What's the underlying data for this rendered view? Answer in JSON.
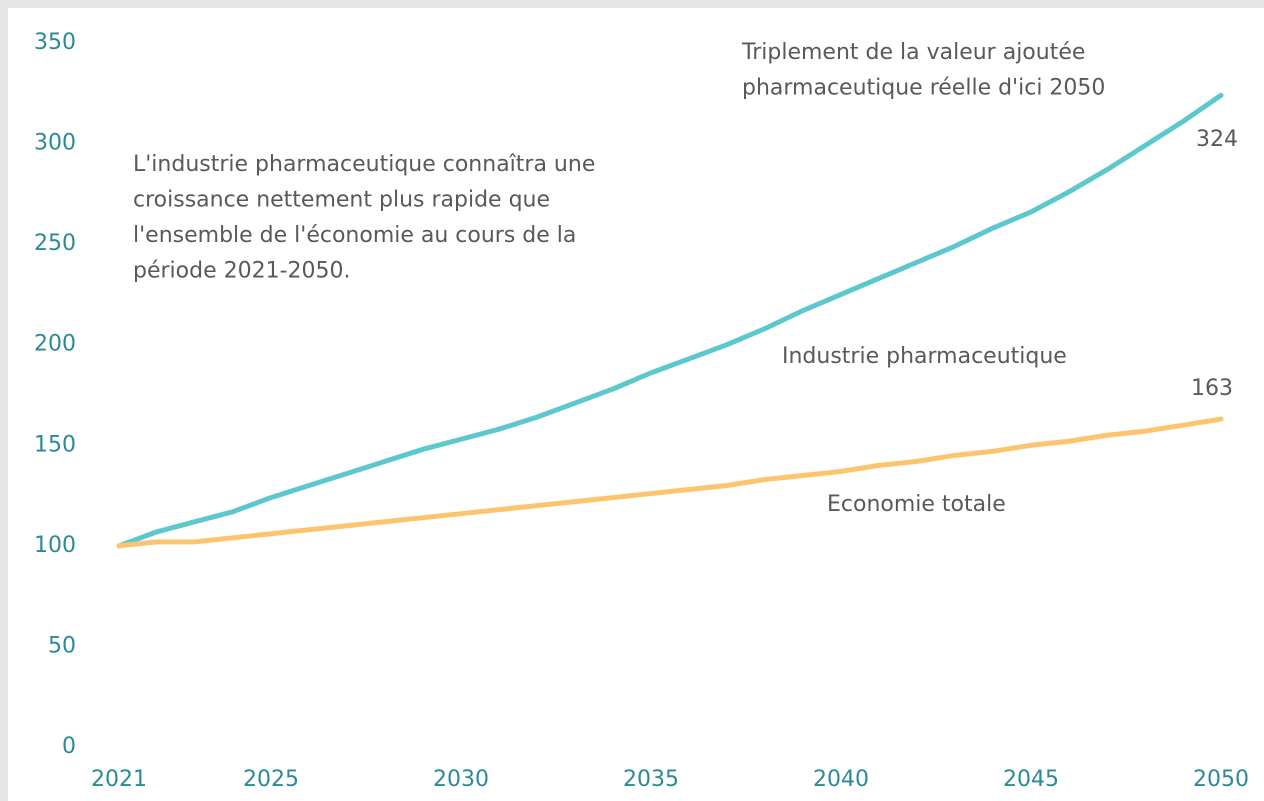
{
  "chart_data": {
    "type": "line",
    "x": [
      2021,
      2022,
      2023,
      2024,
      2025,
      2026,
      2027,
      2028,
      2029,
      2030,
      2031,
      2032,
      2033,
      2034,
      2035,
      2036,
      2037,
      2038,
      2039,
      2040,
      2041,
      2042,
      2043,
      2044,
      2045,
      2046,
      2047,
      2048,
      2049,
      2050
    ],
    "series": [
      {
        "name": "Industrie pharmaceutique",
        "color": "#5cc8cd",
        "values": [
          100,
          107,
          112,
          117,
          124,
          130,
          136,
          142,
          148,
          153,
          158,
          164,
          171,
          178,
          186,
          193,
          200,
          208,
          217,
          225,
          233,
          241,
          249,
          258,
          266,
          276,
          287,
          299,
          311,
          324
        ]
      },
      {
        "name": "Economie totale",
        "color": "#fbc56f",
        "values": [
          100,
          102,
          102,
          104,
          106,
          108,
          110,
          112,
          114,
          116,
          118,
          120,
          122,
          124,
          126,
          128,
          130,
          133,
          135,
          137,
          140,
          142,
          145,
          147,
          150,
          152,
          155,
          157,
          160,
          163
        ]
      }
    ],
    "xlim": [
      2021,
      2050
    ],
    "xticks": [
      2021,
      2025,
      2030,
      2035,
      2040,
      2045,
      2050
    ],
    "ylim": [
      0,
      350
    ],
    "yticks": [
      0,
      50,
      100,
      150,
      200,
      250,
      300,
      350
    ],
    "grid": false,
    "annotations": [
      {
        "lines": [
          "Triplement de la valeur ajoutée",
          "pharmaceutique réelle d'ici 2050"
        ]
      },
      {
        "lines": [
          "L'industrie pharmaceutique connaîtra une",
          "croissance nettement plus rapide que",
          "l'ensemble de l'économie au cours de la",
          "période 2021-2050."
        ]
      }
    ]
  }
}
